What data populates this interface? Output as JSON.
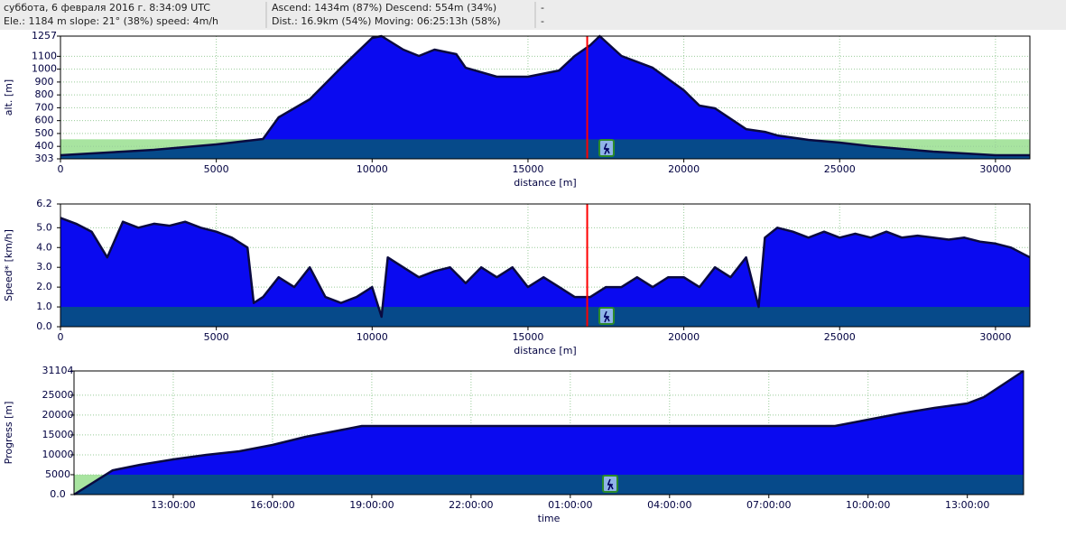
{
  "header": {
    "line1": "суббота, 6 февраля 2016 г. 8:34:09 UTC",
    "line2": "Ele.: 1184 m slope: 21° (38%) speed: 4m/h",
    "line3": "Ascend: 1434m (87%) Descend: 554m (34%)",
    "line4": "Dist.: 16.9km (54%) Moving: 06:25:13h (58%)",
    "line5": "-",
    "line6": "-"
  },
  "chart_data": [
    {
      "type": "area",
      "ylabel": "alt. [m]",
      "xlabel": "distance [m]",
      "color": "#0a0af0",
      "line_color": "#0a0a40",
      "band_color": "#a8e4a0",
      "band_overlay": "#064a8a",
      "band_top": 455,
      "marker_x": 16900,
      "marker_color": "#ff0000",
      "grid": true,
      "xlim": [
        0,
        31104
      ],
      "xticks": [
        0,
        5000,
        10000,
        15000,
        20000,
        25000,
        30000
      ],
      "ylim": [
        303,
        1257
      ],
      "yticks": [
        303,
        400,
        500,
        600,
        700,
        800,
        900,
        1000,
        1100,
        1257
      ],
      "x": [
        0,
        1000,
        2000,
        3000,
        4000,
        5000,
        6000,
        6500,
        7000,
        8000,
        9000,
        10000,
        10300,
        11000,
        11500,
        12000,
        12700,
        13000,
        14000,
        15000,
        16000,
        16500,
        17000,
        17300,
        18000,
        19000,
        20000,
        20500,
        21000,
        22000,
        22600,
        23000,
        24000,
        25000,
        26000,
        27000,
        28000,
        29000,
        30000,
        31104
      ],
      "values": [
        331,
        345,
        359,
        373,
        394,
        415,
        443,
        457,
        626,
        766,
        1011,
        1243,
        1257,
        1152,
        1103,
        1152,
        1117,
        1011,
        941,
        941,
        990,
        1103,
        1187,
        1257,
        1103,
        1011,
        836,
        717,
        696,
        534,
        513,
        485,
        450,
        429,
        401,
        380,
        359,
        345,
        331,
        331
      ]
    },
    {
      "type": "area",
      "ylabel": "Speed* [km/h]",
      "xlabel": "distance [m]",
      "color": "#0a0af0",
      "line_color": "#0a0a40",
      "band_color": "#a8e4a0",
      "band_overlay": "#064a8a",
      "band_top": 1.0,
      "marker_x": 16900,
      "marker_color": "#ff0000",
      "grid": true,
      "xlim": [
        0,
        31104
      ],
      "xticks": [
        0,
        5000,
        10000,
        15000,
        20000,
        25000,
        30000
      ],
      "ylim": [
        0,
        6.2
      ],
      "yticks": [
        {
          "value": 0,
          "label": "0.0"
        },
        {
          "value": 1,
          "label": "1.0"
        },
        {
          "value": 2,
          "label": "2.0"
        },
        {
          "value": 3,
          "label": "3.0"
        },
        {
          "value": 4,
          "label": "4.0"
        },
        {
          "value": 5,
          "label": "5.0"
        },
        6.2
      ],
      "x": [
        0,
        500,
        1000,
        1500,
        2000,
        2500,
        3000,
        3500,
        4000,
        4500,
        5000,
        5500,
        6000,
        6200,
        6500,
        7000,
        7500,
        8000,
        8500,
        9000,
        9500,
        10000,
        10300,
        10500,
        11000,
        11500,
        12000,
        12500,
        13000,
        13500,
        14000,
        14500,
        15000,
        15500,
        16000,
        16500,
        17000,
        17500,
        18000,
        18500,
        19000,
        19500,
        20000,
        20500,
        21000,
        21500,
        22000,
        22400,
        22600,
        23000,
        23500,
        24000,
        24500,
        25000,
        25500,
        26000,
        26500,
        27000,
        27500,
        28000,
        28500,
        29000,
        29500,
        30000,
        30500,
        31104
      ],
      "values": [
        5.5,
        5.2,
        4.8,
        3.5,
        5.3,
        5.0,
        5.2,
        5.1,
        5.3,
        5.0,
        4.8,
        4.5,
        4.0,
        1.2,
        1.5,
        2.5,
        2.0,
        3.0,
        1.5,
        1.2,
        1.5,
        2.0,
        0.5,
        3.5,
        3.0,
        2.5,
        2.8,
        3.0,
        2.2,
        3.0,
        2.5,
        3.0,
        2.0,
        2.5,
        2.0,
        1.5,
        1.5,
        2.0,
        2.0,
        2.5,
        2.0,
        2.5,
        2.5,
        2.0,
        3.0,
        2.5,
        3.5,
        1.0,
        4.5,
        5.0,
        4.8,
        4.5,
        4.8,
        4.5,
        4.7,
        4.5,
        4.8,
        4.5,
        4.6,
        4.5,
        4.4,
        4.5,
        4.3,
        4.2,
        4.0,
        3.5
      ]
    },
    {
      "type": "area",
      "ylabel": "Progress [m]",
      "xlabel": "time",
      "color": "#0a0af0",
      "line_color": "#0a0a40",
      "band_color": "#a8e4a0",
      "band_overlay": "#064a8a",
      "band_top": 5000,
      "grid": true,
      "xlim": [
        10,
        38.7
      ],
      "xticks": [
        {
          "value": 13,
          "label": "13:00:00"
        },
        {
          "value": 16,
          "label": "16:00:00"
        },
        {
          "value": 19,
          "label": "19:00:00"
        },
        {
          "value": 22,
          "label": "22:00:00"
        },
        {
          "value": 25,
          "label": "01:00:00"
        },
        {
          "value": 28,
          "label": "04:00:00"
        },
        {
          "value": 31,
          "label": "07:00:00"
        },
        {
          "value": 34,
          "label": "10:00:00"
        },
        {
          "value": 37,
          "label": "13:00:00"
        }
      ],
      "ylim": [
        0,
        31104
      ],
      "yticks": [
        {
          "value": 0,
          "label": "0.0"
        },
        5000,
        10000,
        15000,
        20000,
        25000,
        31104
      ],
      "x": [
        10,
        11.17,
        12,
        13,
        14,
        15,
        16,
        17,
        18,
        18.7,
        33,
        34,
        35,
        36,
        37,
        37.5,
        38,
        38.7
      ],
      "values": [
        0,
        6100,
        7490,
        8850,
        9990,
        10900,
        12490,
        14530,
        16120,
        17250,
        17250,
        18840,
        20430,
        21800,
        22930,
        24520,
        27240,
        31104
      ]
    }
  ]
}
